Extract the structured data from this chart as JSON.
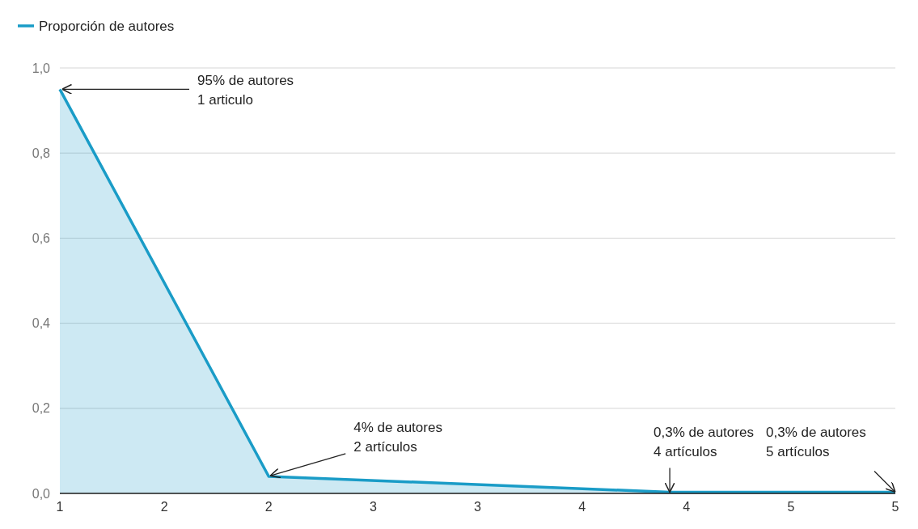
{
  "chart_data": {
    "type": "area",
    "x": [
      1,
      2,
      3.92,
      5
    ],
    "series": [
      {
        "name": "Proporción de autores",
        "color": "#1a9cc7",
        "values": [
          0.95,
          0.04,
          0.003,
          0.003
        ]
      }
    ],
    "xlim": [
      1,
      5
    ],
    "xticks": [
      1,
      {
        "value": 1.5,
        "label": "2"
      },
      2,
      {
        "value": 2.5,
        "label": "3"
      },
      3,
      {
        "value": 3.5,
        "label": "4"
      },
      4,
      {
        "value": 4.5,
        "label": "5"
      },
      5
    ],
    "ylim": [
      0,
      1
    ],
    "yticks": [
      {
        "value": 0,
        "label": "0,0"
      },
      {
        "value": 0.2,
        "label": "0,2"
      },
      {
        "value": 0.4,
        "label": "0,4"
      },
      {
        "value": 0.6,
        "label": "0,6"
      },
      {
        "value": 0.8,
        "label": "0,8"
      },
      {
        "value": 1,
        "label": "1,0"
      }
    ],
    "grid": "y",
    "legend": "top left",
    "annotations": [
      {
        "text": "95% de autores\n1 articulo",
        "x": 1,
        "y": 0.95
      },
      {
        "text": "4% de autores\n2 artículos",
        "x": 2,
        "y": 0.04
      },
      {
        "text": "0,3% de autores\n4 artículos",
        "x": 3.92,
        "y": 0.003
      },
      {
        "text": "0,3% de autores\n5 artículos",
        "x": 5,
        "y": 0.003
      }
    ]
  }
}
